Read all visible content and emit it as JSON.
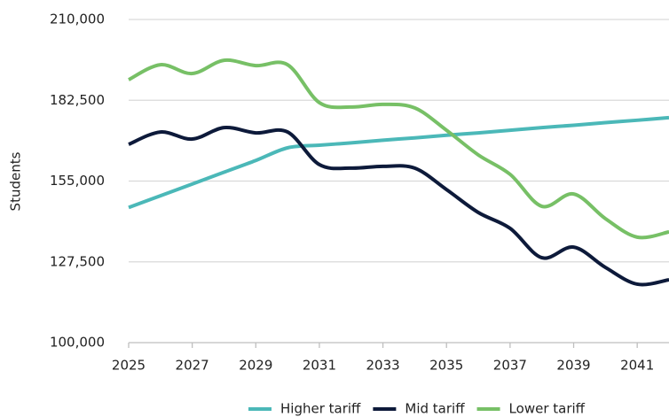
{
  "chart_data": {
    "type": "line",
    "y_label": "Students",
    "x": [
      2025,
      2026,
      2027,
      2028,
      2029,
      2030,
      2031,
      2032,
      2033,
      2034,
      2035,
      2036,
      2037,
      2038,
      2039,
      2040,
      2041,
      2042
    ],
    "xlim": [
      2025,
      2042
    ],
    "xticks": [
      2025,
      2027,
      2029,
      2031,
      2033,
      2035,
      2037,
      2039,
      2041
    ],
    "ylim": [
      100000,
      210000
    ],
    "yticks": [
      {
        "value": 100000,
        "label": "100,000"
      },
      {
        "value": 127500,
        "label": "127,500"
      },
      {
        "value": 155000,
        "label": "155,000"
      },
      {
        "value": 182500,
        "label": "182,500"
      },
      {
        "value": 210000,
        "label": "210,000"
      }
    ],
    "grid": true,
    "legend": "bottom",
    "series": [
      {
        "name": "Higher tariff",
        "color": "#4bb8b8",
        "values": [
          146000,
          150000,
          154000,
          158000,
          162000,
          166300,
          167200,
          168000,
          168900,
          169700,
          170600,
          171400,
          172300,
          173200,
          174000,
          174900,
          175700,
          176600
        ]
      },
      {
        "name": "Mid tariff",
        "color": "#0d1a3a",
        "values": [
          167500,
          171700,
          169300,
          173200,
          171400,
          171700,
          160600,
          159400,
          160000,
          159400,
          152100,
          144300,
          138900,
          128900,
          132500,
          125600,
          119900,
          121400
        ]
      },
      {
        "name": "Lower tariff",
        "color": "#77c066",
        "values": [
          189500,
          194600,
          191600,
          196100,
          194300,
          194600,
          181700,
          180200,
          181100,
          179900,
          172300,
          163900,
          157300,
          146400,
          150600,
          142200,
          135900,
          137700
        ]
      }
    ]
  }
}
